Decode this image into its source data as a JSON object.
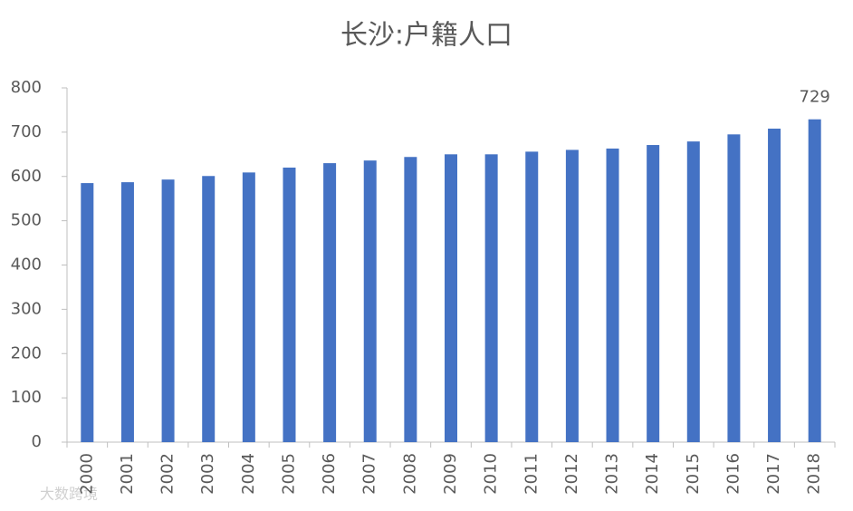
{
  "chart_data": {
    "type": "bar",
    "title": "长沙:户籍人口",
    "categories": [
      "2000",
      "2001",
      "2002",
      "2003",
      "2004",
      "2005",
      "2006",
      "2007",
      "2008",
      "2009",
      "2010",
      "2011",
      "2012",
      "2013",
      "2014",
      "2015",
      "2016",
      "2017",
      "2018"
    ],
    "values": [
      585,
      587,
      593,
      601,
      609,
      620,
      630,
      636,
      644,
      650,
      650,
      656,
      660,
      663,
      671,
      679,
      695,
      708,
      729
    ],
    "color": "#4472c4",
    "ylim": [
      0,
      800
    ],
    "yticks": [
      0,
      100,
      200,
      300,
      400,
      500,
      600,
      700,
      800
    ],
    "grid": false,
    "watermark": "大数跨境"
  }
}
